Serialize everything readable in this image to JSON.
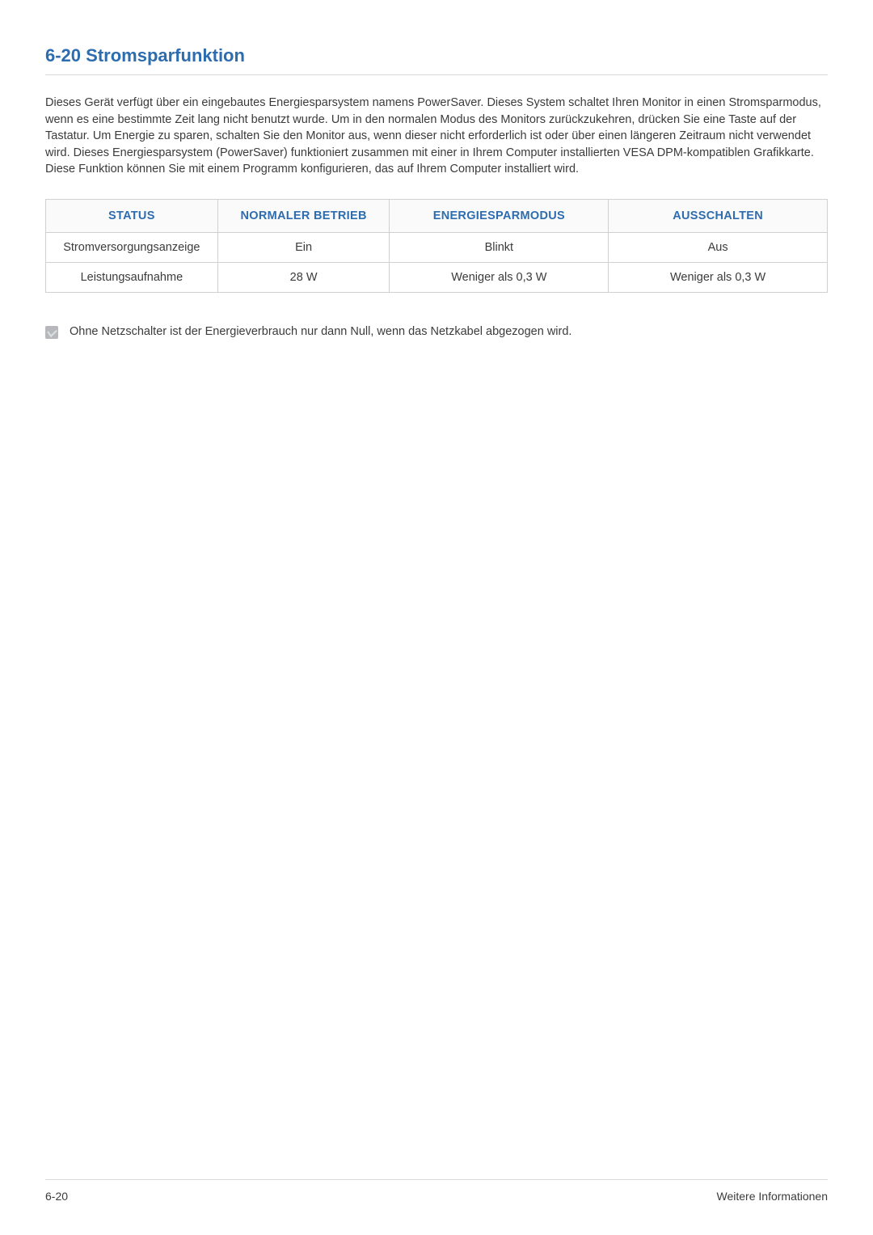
{
  "heading": "6-20  Stromsparfunktion",
  "paragraph": "Dieses Gerät verfügt über ein eingebautes Energiesparsystem namens PowerSaver. Dieses System schaltet Ihren Monitor in einen Stromsparmodus, wenn es eine bestimmte Zeit lang nicht benutzt wurde. Um in den normalen Modus des Monitors zurückzukehren, drücken Sie eine Taste auf der Tastatur. Um Energie zu sparen, schalten Sie den Monitor aus, wenn dieser nicht erforderlich ist oder über einen längeren Zeitraum nicht verwendet wird. Dieses Energiesparsystem (PowerSaver) funktioniert zusammen mit einer in Ihrem Computer installierten VESA DPM-kompatiblen Grafikkarte. Diese Funktion können Sie mit einem Programm konfigurieren, das auf Ihrem Computer installiert wird.",
  "table": {
    "columns": [
      "STATUS",
      "NORMALER BETRIEB",
      "ENERGIESPARMODUS",
      "AUSSCHALTEN"
    ],
    "rows": [
      [
        "Stromversorgungsanzeige",
        "Ein",
        "Blinkt",
        "Aus"
      ],
      [
        "Leistungsaufnahme",
        "28 W",
        "Weniger als 0,3 W",
        "Weniger als 0,3 W"
      ]
    ],
    "header_color": "#2d6cae",
    "header_bg": "#fafafa",
    "border_color": "#d0d0d0"
  },
  "note": "Ohne Netzschalter ist der Energieverbrauch nur dann Null, wenn das Netzkabel abgezogen wird.",
  "footer": {
    "left": "6-20",
    "right": "Weitere Informationen"
  },
  "colors": {
    "accent": "#2d6cae",
    "text": "#3b3b3b",
    "rule": "#d9d9d9",
    "icon_bg": "#b6b8bb",
    "background": "#ffffff"
  }
}
